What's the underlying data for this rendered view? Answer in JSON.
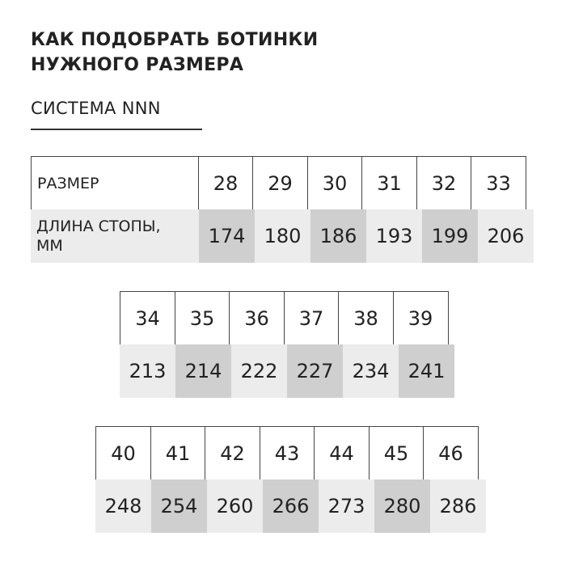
{
  "title_line1": "КАК ПОДОБРАТЬ БОТИНКИ",
  "title_line2": "НУЖНОГО РАЗМЕРА",
  "subtitle": "СИСТЕМА NNN",
  "row_labels": {
    "size": "РАЗМЕР",
    "foot_length_1": "ДЛИНА СТОПЫ,",
    "foot_length_2": "ММ"
  },
  "colors": {
    "dark_cell": "#cfcfcf",
    "light_cell": "#ececec",
    "border": "#444444"
  },
  "tables": [
    {
      "sizes": [
        "28",
        "29",
        "30",
        "31",
        "32",
        "33"
      ],
      "lengths": [
        "174",
        "180",
        "186",
        "193",
        "199",
        "206"
      ]
    },
    {
      "sizes": [
        "34",
        "35",
        "36",
        "37",
        "38",
        "39"
      ],
      "lengths": [
        "213",
        "214",
        "222",
        "227",
        "234",
        "241"
      ]
    },
    {
      "sizes": [
        "40",
        "41",
        "42",
        "43",
        "44",
        "45",
        "46"
      ],
      "lengths": [
        "248",
        "254",
        "260",
        "266",
        "273",
        "280",
        "286"
      ]
    }
  ]
}
